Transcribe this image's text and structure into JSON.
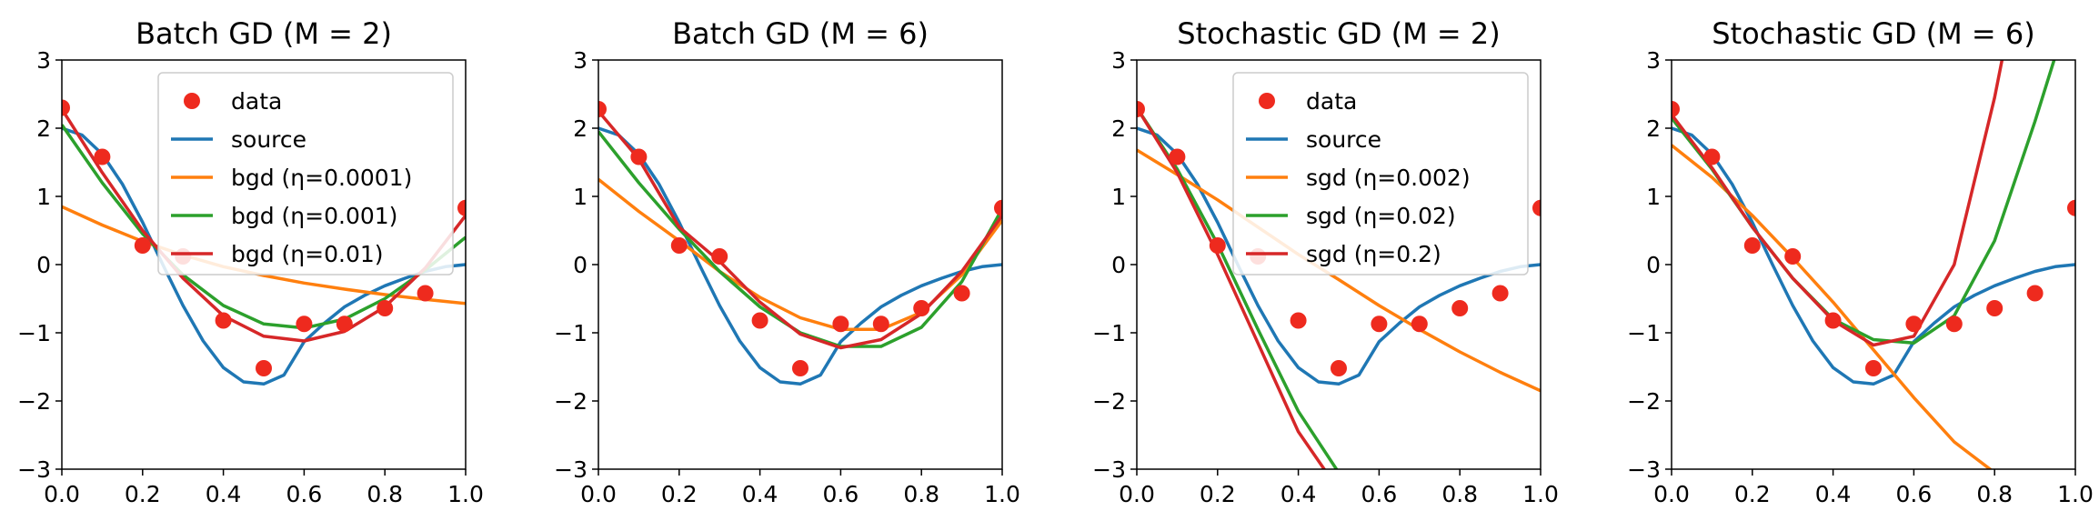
{
  "chart_data": [
    {
      "type": "line",
      "title": "Batch GD (M = 2)",
      "xlim": [
        0,
        1
      ],
      "ylim": [
        -3,
        3
      ],
      "xticks": [
        "0.0",
        "0.2",
        "0.4",
        "0.6",
        "0.8",
        "1.0"
      ],
      "yticks": [
        "3",
        "2",
        "1",
        "0",
        "−1",
        "−2",
        "−3"
      ],
      "legend_placement": "upper-center",
      "data_points": {
        "x": [
          0.0,
          0.1,
          0.2,
          0.3,
          0.4,
          0.5,
          0.6,
          0.7,
          0.8,
          0.9,
          1.0
        ],
        "y": [
          2.3,
          1.58,
          0.28,
          0.12,
          -0.82,
          -1.52,
          -0.87,
          -0.87,
          -0.64,
          -0.42,
          0.83
        ]
      },
      "series": [
        {
          "name": "data",
          "kind": "scatter",
          "color": "#ee2a1e"
        },
        {
          "name": "source",
          "kind": "line",
          "color": "#1f77b4",
          "x": [
            0.0,
            0.05,
            0.1,
            0.15,
            0.2,
            0.25,
            0.3,
            0.35,
            0.4,
            0.45,
            0.5,
            0.55,
            0.6,
            0.65,
            0.7,
            0.75,
            0.8,
            0.85,
            0.9,
            0.95,
            1.0
          ],
          "y": [
            2.0,
            1.9,
            1.62,
            1.18,
            0.62,
            0.0,
            -0.6,
            -1.12,
            -1.51,
            -1.72,
            -1.75,
            -1.62,
            -1.13,
            -0.86,
            -0.62,
            -0.45,
            -0.31,
            -0.2,
            -0.1,
            -0.03,
            0.0
          ]
        },
        {
          "name": "bgd (η=0.0001)",
          "kind": "line",
          "color": "#ff7f0e",
          "x": [
            0.0,
            0.1,
            0.2,
            0.3,
            0.4,
            0.5,
            0.6,
            0.7,
            0.8,
            0.9,
            1.0
          ],
          "y": [
            0.85,
            0.58,
            0.34,
            0.14,
            -0.03,
            -0.16,
            -0.27,
            -0.36,
            -0.44,
            -0.51,
            -0.57
          ]
        },
        {
          "name": "bgd (η=0.001)",
          "kind": "line",
          "color": "#2ca02c",
          "x": [
            0.0,
            0.1,
            0.2,
            0.3,
            0.4,
            0.5,
            0.6,
            0.7,
            0.8,
            0.9,
            1.0
          ],
          "y": [
            2.05,
            1.2,
            0.45,
            -0.15,
            -0.6,
            -0.87,
            -0.93,
            -0.8,
            -0.5,
            -0.08,
            0.4
          ]
        },
        {
          "name": "bgd (η=0.01)",
          "kind": "line",
          "color": "#d62728",
          "x": [
            0.0,
            0.1,
            0.2,
            0.3,
            0.4,
            0.5,
            0.6,
            0.7,
            0.8,
            0.9,
            1.0
          ],
          "y": [
            2.28,
            1.35,
            0.5,
            -0.2,
            -0.75,
            -1.05,
            -1.12,
            -0.98,
            -0.62,
            -0.05,
            0.72
          ]
        }
      ]
    },
    {
      "type": "line",
      "title": "Batch GD (M = 6)",
      "xlim": [
        0,
        1
      ],
      "ylim": [
        -3,
        3
      ],
      "xticks": [
        "0.0",
        "0.2",
        "0.4",
        "0.6",
        "0.8",
        "1.0"
      ],
      "yticks": [
        "3",
        "2",
        "1",
        "0",
        "−1",
        "−2",
        "−3"
      ],
      "legend_placement": "none",
      "data_points": {
        "x": [
          0.0,
          0.1,
          0.2,
          0.3,
          0.4,
          0.5,
          0.6,
          0.7,
          0.8,
          0.9,
          1.0
        ],
        "y": [
          2.28,
          1.58,
          0.28,
          0.12,
          -0.82,
          -1.52,
          -0.87,
          -0.87,
          -0.64,
          -0.42,
          0.83
        ]
      },
      "series": [
        {
          "name": "data",
          "kind": "scatter",
          "color": "#ee2a1e"
        },
        {
          "name": "source",
          "kind": "line",
          "color": "#1f77b4",
          "x": [
            0.0,
            0.05,
            0.1,
            0.15,
            0.2,
            0.25,
            0.3,
            0.35,
            0.4,
            0.45,
            0.5,
            0.55,
            0.6,
            0.65,
            0.7,
            0.75,
            0.8,
            0.85,
            0.9,
            0.95,
            1.0
          ],
          "y": [
            2.0,
            1.9,
            1.62,
            1.18,
            0.62,
            0.0,
            -0.6,
            -1.12,
            -1.51,
            -1.72,
            -1.75,
            -1.62,
            -1.13,
            -0.86,
            -0.62,
            -0.45,
            -0.31,
            -0.2,
            -0.1,
            -0.03,
            0.0
          ]
        },
        {
          "name": "",
          "kind": "line",
          "color": "#ff7f0e",
          "x": [
            0.0,
            0.1,
            0.2,
            0.3,
            0.4,
            0.5,
            0.6,
            0.7,
            0.8,
            0.9,
            1.0
          ],
          "y": [
            1.25,
            0.78,
            0.35,
            -0.1,
            -0.48,
            -0.78,
            -0.95,
            -0.95,
            -0.7,
            -0.15,
            0.65
          ]
        },
        {
          "name": "",
          "kind": "line",
          "color": "#2ca02c",
          "x": [
            0.0,
            0.1,
            0.2,
            0.3,
            0.4,
            0.5,
            0.6,
            0.7,
            0.8,
            0.9,
            1.0
          ],
          "y": [
            1.95,
            1.2,
            0.52,
            -0.1,
            -0.62,
            -1.0,
            -1.2,
            -1.2,
            -0.92,
            -0.25,
            0.82
          ]
        },
        {
          "name": "",
          "kind": "line",
          "color": "#d62728",
          "x": [
            0.0,
            0.1,
            0.2,
            0.3,
            0.4,
            0.5,
            0.6,
            0.7,
            0.8,
            0.9,
            1.0
          ],
          "y": [
            2.25,
            1.55,
            0.55,
            0.05,
            -0.55,
            -1.02,
            -1.22,
            -1.1,
            -0.72,
            -0.1,
            0.72
          ]
        }
      ]
    },
    {
      "type": "line",
      "title": "Stochastic GD (M = 2)",
      "xlim": [
        0,
        1
      ],
      "ylim": [
        -3,
        3
      ],
      "xticks": [
        "0.0",
        "0.2",
        "0.4",
        "0.6",
        "0.8",
        "1.0"
      ],
      "yticks": [
        "3",
        "2",
        "1",
        "0",
        "−1",
        "−2",
        "−3"
      ],
      "legend_placement": "upper-center",
      "data_points": {
        "x": [
          0.0,
          0.1,
          0.2,
          0.3,
          0.4,
          0.5,
          0.6,
          0.7,
          0.8,
          0.9,
          1.0
        ],
        "y": [
          2.28,
          1.58,
          0.28,
          0.12,
          -0.82,
          -1.52,
          -0.87,
          -0.87,
          -0.64,
          -0.42,
          0.83
        ]
      },
      "series": [
        {
          "name": "data",
          "kind": "scatter",
          "color": "#ee2a1e"
        },
        {
          "name": "source",
          "kind": "line",
          "color": "#1f77b4",
          "x": [
            0.0,
            0.05,
            0.1,
            0.15,
            0.2,
            0.25,
            0.3,
            0.35,
            0.4,
            0.45,
            0.5,
            0.55,
            0.6,
            0.65,
            0.7,
            0.75,
            0.8,
            0.85,
            0.9,
            0.95,
            1.0
          ],
          "y": [
            2.0,
            1.9,
            1.62,
            1.18,
            0.62,
            0.0,
            -0.6,
            -1.12,
            -1.51,
            -1.72,
            -1.75,
            -1.62,
            -1.13,
            -0.86,
            -0.62,
            -0.45,
            -0.31,
            -0.2,
            -0.1,
            -0.03,
            0.0
          ]
        },
        {
          "name": "sgd (η=0.002)",
          "kind": "line",
          "color": "#ff7f0e",
          "x": [
            0.0,
            0.1,
            0.2,
            0.3,
            0.4,
            0.5,
            0.6,
            0.7,
            0.8,
            0.9,
            1.0
          ],
          "y": [
            1.68,
            1.32,
            0.95,
            0.55,
            0.15,
            -0.22,
            -0.6,
            -0.95,
            -1.28,
            -1.58,
            -1.85
          ]
        },
        {
          "name": "sgd (η=0.02)",
          "kind": "line",
          "color": "#2ca02c",
          "x": [
            0.0,
            0.1,
            0.2,
            0.3,
            0.4,
            0.5
          ],
          "y": [
            2.3,
            1.4,
            0.3,
            -0.95,
            -2.15,
            -3.05
          ]
        },
        {
          "name": "sgd (η=0.2)",
          "kind": "line",
          "color": "#d62728",
          "x": [
            0.0,
            0.1,
            0.2,
            0.3,
            0.4,
            0.47
          ],
          "y": [
            2.3,
            1.35,
            0.15,
            -1.15,
            -2.45,
            -3.05
          ]
        }
      ]
    },
    {
      "type": "line",
      "title": "Stochastic GD (M = 6)",
      "xlim": [
        0,
        1
      ],
      "ylim": [
        -3,
        3
      ],
      "xticks": [
        "0.0",
        "0.2",
        "0.4",
        "0.6",
        "0.8",
        "1.0"
      ],
      "yticks": [
        "3",
        "2",
        "1",
        "0",
        "−1",
        "−2",
        "−3"
      ],
      "legend_placement": "none",
      "data_points": {
        "x": [
          0.0,
          0.1,
          0.2,
          0.3,
          0.4,
          0.5,
          0.6,
          0.7,
          0.8,
          0.9,
          1.0
        ],
        "y": [
          2.28,
          1.58,
          0.28,
          0.12,
          -0.82,
          -1.52,
          -0.87,
          -0.87,
          -0.64,
          -0.42,
          0.83
        ]
      },
      "series": [
        {
          "name": "data",
          "kind": "scatter",
          "color": "#ee2a1e"
        },
        {
          "name": "source",
          "kind": "line",
          "color": "#1f77b4",
          "x": [
            0.0,
            0.05,
            0.1,
            0.15,
            0.2,
            0.25,
            0.3,
            0.35,
            0.4,
            0.45,
            0.5,
            0.55,
            0.6,
            0.65,
            0.7,
            0.75,
            0.8,
            0.85,
            0.9,
            0.95,
            1.0
          ],
          "y": [
            2.0,
            1.9,
            1.62,
            1.18,
            0.62,
            0.0,
            -0.6,
            -1.12,
            -1.51,
            -1.72,
            -1.75,
            -1.62,
            -1.13,
            -0.86,
            -0.62,
            -0.45,
            -0.31,
            -0.2,
            -0.1,
            -0.03,
            0.0
          ]
        },
        {
          "name": "",
          "kind": "line",
          "color": "#ff7f0e",
          "x": [
            0.0,
            0.1,
            0.2,
            0.3,
            0.4,
            0.5,
            0.6,
            0.7,
            0.8
          ],
          "y": [
            1.75,
            1.28,
            0.72,
            0.1,
            -0.55,
            -1.25,
            -1.95,
            -2.6,
            -3.05
          ]
        },
        {
          "name": "",
          "kind": "line",
          "color": "#2ca02c",
          "x": [
            0.0,
            0.1,
            0.2,
            0.3,
            0.4,
            0.5,
            0.6,
            0.7,
            0.8,
            0.9,
            0.95
          ],
          "y": [
            2.15,
            1.4,
            0.55,
            -0.2,
            -0.8,
            -1.1,
            -1.15,
            -0.75,
            0.35,
            2.1,
            3.05
          ]
        },
        {
          "name": "",
          "kind": "line",
          "color": "#d62728",
          "x": [
            0.0,
            0.1,
            0.2,
            0.3,
            0.4,
            0.5,
            0.6,
            0.7,
            0.8,
            0.82
          ],
          "y": [
            2.2,
            1.42,
            0.55,
            -0.2,
            -0.82,
            -1.18,
            -1.05,
            0.0,
            2.45,
            3.05
          ]
        }
      ]
    }
  ]
}
